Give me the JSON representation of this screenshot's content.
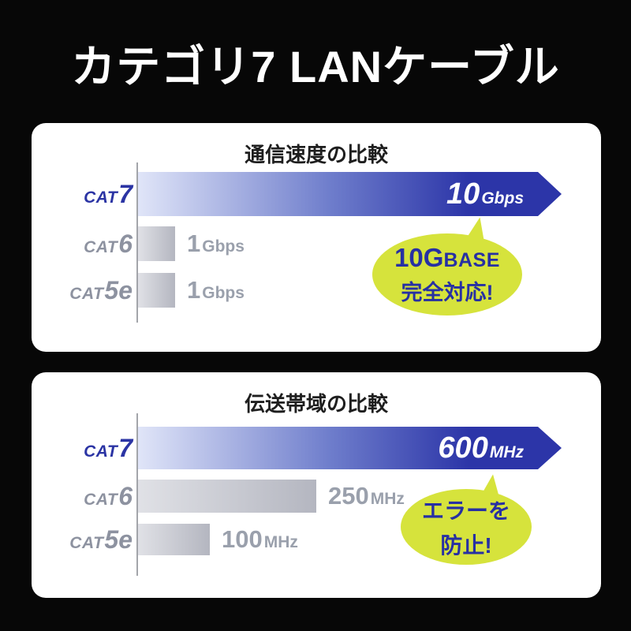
{
  "page": {
    "title": "カテゴリ7 LANケーブル"
  },
  "colors": {
    "bg": "#070707",
    "panel": "#ffffff",
    "blue-deep": "#2c35a8",
    "blue-light": "#e0e5f8",
    "blue-mid": "#6f7ecc",
    "blue-text": "#2b34a4",
    "bubble-blue": "#2730a3",
    "gray-label": "#8d92a0",
    "gray-value": "#9aa0ac",
    "graybar-light": "#e0e1e6",
    "graybar-dark": "#b4b6c0",
    "axis": "#a3a5aa",
    "lime": "#d6e33c",
    "title-dark": "#1e1e1e",
    "white": "#ffffff"
  },
  "chart_data": [
    {
      "type": "bar",
      "orientation": "horizontal",
      "title": "通信速度の比較",
      "unit": "Gbps",
      "categories": [
        "CAT7",
        "CAT6",
        "CAT5e"
      ],
      "values": [
        10,
        1,
        1
      ],
      "value_labels": [
        "10Gbps",
        "1Gbps",
        "1Gbps"
      ],
      "highlight_index": 0,
      "grid": false,
      "legend": false,
      "rows": [
        {
          "cat_prefix": "CAT",
          "cat_num": "7",
          "value_num": "10",
          "value_unit": "Gbps",
          "bar_fraction": 1.0,
          "style": "blue-arrow",
          "label_inside": true
        },
        {
          "cat_prefix": "CAT",
          "cat_num": "6",
          "value_num": "1",
          "value_unit": "Gbps",
          "bar_fraction": 0.088,
          "style": "gray",
          "label_inside": false
        },
        {
          "cat_prefix": "CAT",
          "cat_num": "5e",
          "value_num": "1",
          "value_unit": "Gbps",
          "bar_fraction": 0.088,
          "style": "gray",
          "label_inside": false
        }
      ],
      "callout": {
        "line1_big": "10G",
        "line1_small": "BASE",
        "line2": "完全対応!"
      }
    },
    {
      "type": "bar",
      "orientation": "horizontal",
      "title": "伝送帯域の比較",
      "unit": "MHz",
      "categories": [
        "CAT7",
        "CAT6",
        "CAT5e"
      ],
      "values": [
        600,
        250,
        100
      ],
      "value_labels": [
        "600MHz",
        "250MHz",
        "100MHz"
      ],
      "highlight_index": 0,
      "grid": false,
      "legend": false,
      "rows": [
        {
          "cat_prefix": "CAT",
          "cat_num": "7",
          "value_num": "600",
          "value_unit": "MHz",
          "bar_fraction": 1.0,
          "style": "blue-arrow",
          "label_inside": true
        },
        {
          "cat_prefix": "CAT",
          "cat_num": "6",
          "value_num": "250",
          "value_unit": "MHz",
          "bar_fraction": 0.42,
          "style": "gray",
          "label_inside": false
        },
        {
          "cat_prefix": "CAT",
          "cat_num": "5e",
          "value_num": "100",
          "value_unit": "MHz",
          "bar_fraction": 0.17,
          "style": "gray",
          "label_inside": false
        }
      ],
      "callout": {
        "line1_big": "エラーを",
        "line1_small": "",
        "line2": "防止!"
      }
    }
  ]
}
